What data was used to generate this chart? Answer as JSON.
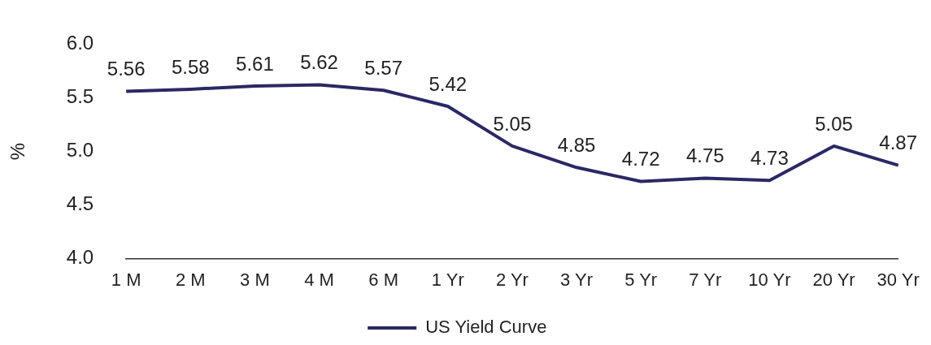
{
  "chart_data": {
    "type": "line",
    "ylabel": "%",
    "categories": [
      "1 M",
      "2 M",
      "3 M",
      "4 M",
      "6 M",
      "1 Yr",
      "2 Yr",
      "3 Yr",
      "5 Yr",
      "7 Yr",
      "10 Yr",
      "20 Yr",
      "30 Yr"
    ],
    "series": [
      {
        "name": "US Yield Curve",
        "color": "#2b2865",
        "values": [
          5.56,
          5.58,
          5.61,
          5.62,
          5.57,
          5.42,
          5.05,
          4.85,
          4.72,
          4.75,
          4.73,
          5.05,
          4.87
        ]
      }
    ],
    "ylim": [
      4,
      6
    ],
    "yticks": [
      {
        "value": 4,
        "label": "4.0"
      },
      {
        "value": 4.5,
        "label": "4.5"
      },
      {
        "value": 5,
        "label": "5.0"
      },
      {
        "value": 5.5,
        "label": "5.5"
      },
      {
        "value": 6,
        "label": "6.0"
      }
    ],
    "grid": false,
    "legend": "bottom",
    "marker": "none",
    "line_style": "solid",
    "data_labels": true
  }
}
